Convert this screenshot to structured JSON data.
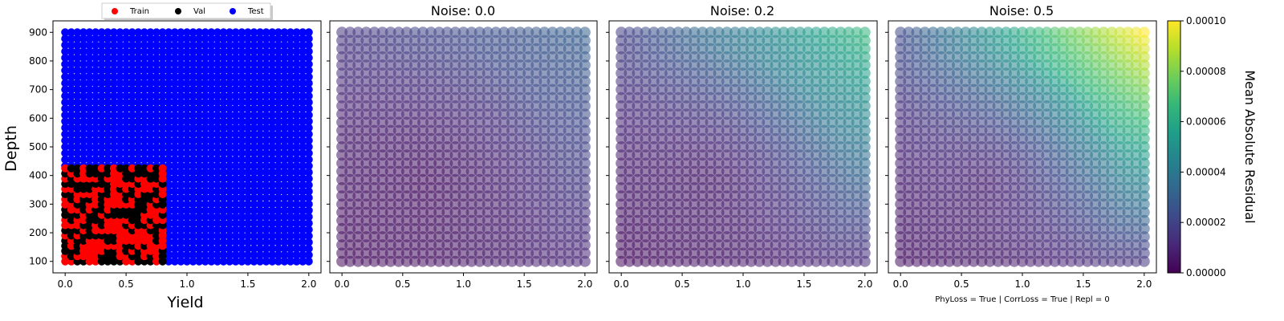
{
  "chart_data": [
    {
      "type": "scatter",
      "panel": "data-split",
      "title": "",
      "xlabel": "Yield",
      "ylabel": "Depth",
      "xlim": [
        -0.1,
        2.1
      ],
      "ylim": [
        60,
        940
      ],
      "xticks": [
        "0.0",
        "0.5",
        "1.0",
        "1.5",
        "2.0"
      ],
      "yticks": [
        "100",
        "200",
        "300",
        "400",
        "500",
        "600",
        "700",
        "800",
        "900"
      ],
      "legend": {
        "placement": "top",
        "entries": [
          "Train",
          "Val",
          "Test"
        ]
      },
      "series": [
        {
          "name": "Train",
          "color": "#ff0000",
          "x_range": [
            0.0,
            0.8
          ],
          "y_range": [
            100,
            425
          ]
        },
        {
          "name": "Val",
          "color": "#000000",
          "x_range": [
            0.0,
            0.8
          ],
          "y_range": [
            100,
            425
          ]
        },
        {
          "name": "Test",
          "color": "#0000ff",
          "x_range": [
            0.0,
            2.0
          ],
          "y_range": [
            100,
            900
          ]
        }
      ]
    },
    {
      "type": "scatter",
      "panel": "residual",
      "title": "Noise: 0.0",
      "xlim": [
        -0.1,
        2.1
      ],
      "ylim": [
        60,
        940
      ],
      "xticks": [
        "0.0",
        "0.5",
        "1.0",
        "1.5",
        "2.0"
      ],
      "residual_corners": {
        "bottom_left": 3e-06,
        "bottom_right": 1e-05,
        "top_left": 1.5e-05,
        "top_right": 3e-05,
        "center": 1e-06
      }
    },
    {
      "type": "scatter",
      "panel": "residual",
      "title": "Noise: 0.2",
      "xlim": [
        -0.1,
        2.1
      ],
      "ylim": [
        60,
        940
      ],
      "xticks": [
        "0.0",
        "0.5",
        "1.0",
        "1.5",
        "2.0"
      ],
      "residual_corners": {
        "bottom_left": 3e-06,
        "bottom_right": 1.2e-05,
        "top_left": 1.8e-05,
        "top_right": 6.5e-05,
        "center": 2e-06
      }
    },
    {
      "type": "scatter",
      "panel": "residual",
      "title": "Noise: 0.5",
      "xlim": [
        -0.1,
        2.1
      ],
      "ylim": [
        60,
        940
      ],
      "xticks": [
        "0.0",
        "0.5",
        "1.0",
        "1.5",
        "2.0"
      ],
      "footer": "PhyLoss = True | CorrLoss = True | Repl = 0",
      "residual_corners": {
        "bottom_left": 4e-06,
        "bottom_right": 1.5e-05,
        "top_left": 2.2e-05,
        "top_right": 0.0001,
        "center": 3e-06
      }
    }
  ],
  "colorbar": {
    "label": "Mean Absolute Residual",
    "range": [
      0,
      0.0001
    ],
    "ticks": [
      "0.00000",
      "0.00002",
      "0.00004",
      "0.00006",
      "0.00008",
      "0.00010"
    ],
    "colormap": "viridis",
    "stops": [
      "#440154",
      "#482878",
      "#3e4989",
      "#31688e",
      "#26828e",
      "#1f9e89",
      "#35b779",
      "#6ece58",
      "#b5de2b",
      "#fde725"
    ]
  }
}
